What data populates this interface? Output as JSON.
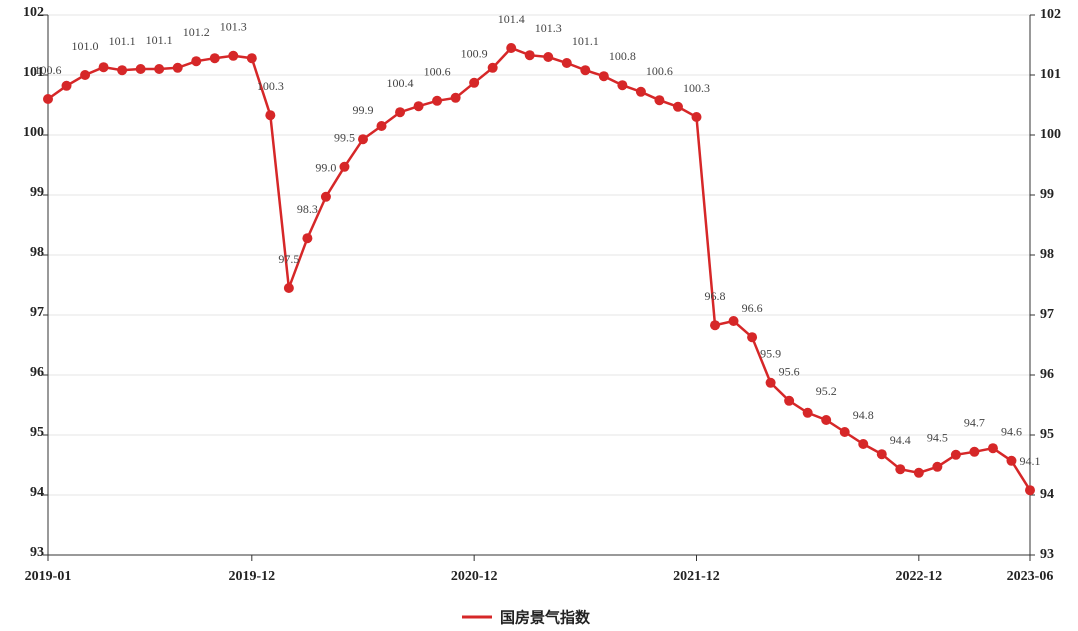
{
  "chart_data": {
    "type": "line",
    "categories": [
      "2019-01",
      null,
      null,
      null,
      null,
      null,
      null,
      null,
      null,
      null,
      null,
      "2019-12",
      null,
      null,
      null,
      null,
      null,
      null,
      null,
      null,
      null,
      null,
      null,
      "2020-12",
      null,
      null,
      null,
      null,
      null,
      null,
      null,
      null,
      null,
      null,
      null,
      "2021-12",
      null,
      null,
      null,
      null,
      null,
      null,
      null,
      null,
      null,
      null,
      null,
      "2022-12",
      null,
      null,
      null,
      null,
      null,
      "2023-06"
    ],
    "series": [
      {
        "name": "国房景气指数",
        "color": "#d62728",
        "values": [
          100.6,
          100.82,
          101.0,
          101.13,
          101.08,
          101.1,
          101.1,
          101.12,
          101.23,
          101.28,
          101.32,
          101.28,
          100.33,
          97.45,
          98.28,
          98.97,
          99.47,
          99.93,
          100.15,
          100.38,
          100.48,
          100.57,
          100.62,
          100.87,
          101.12,
          101.45,
          101.33,
          101.3,
          101.2,
          101.08,
          100.98,
          100.83,
          100.72,
          100.58,
          100.47,
          100.3,
          96.83,
          96.9,
          96.63,
          95.87,
          95.57,
          95.37,
          95.25,
          95.05,
          94.85,
          94.68,
          94.43,
          94.37,
          94.47,
          94.67,
          94.72,
          94.78,
          94.57,
          94.08
        ],
        "value_labels": [
          "100.6",
          null,
          "101.0",
          null,
          "101.1",
          null,
          "101.1",
          null,
          "101.2",
          null,
          "101.3",
          null,
          "100.3",
          "97.5",
          "98.3",
          "99.0",
          "99.5",
          "99.9",
          null,
          "100.4",
          null,
          "100.6",
          null,
          "100.9",
          null,
          "101.4",
          null,
          "101.3",
          null,
          "101.1",
          null,
          "100.8",
          null,
          "100.6",
          null,
          "100.3",
          "96.8",
          null,
          "96.6",
          "95.9",
          "95.6",
          null,
          "95.2",
          null,
          "94.8",
          null,
          "94.4",
          null,
          "94.5",
          null,
          "94.7",
          null,
          "94.6",
          "94.1"
        ]
      }
    ],
    "ylim": [
      93,
      102
    ],
    "yticks": [
      93,
      94,
      95,
      96,
      97,
      98,
      99,
      100,
      101,
      102
    ],
    "y2lim": [
      93,
      102
    ],
    "y2ticks": [
      93,
      94,
      95,
      96,
      97,
      98,
      99,
      100,
      101,
      102
    ],
    "grid": true,
    "legend": "bottom"
  }
}
